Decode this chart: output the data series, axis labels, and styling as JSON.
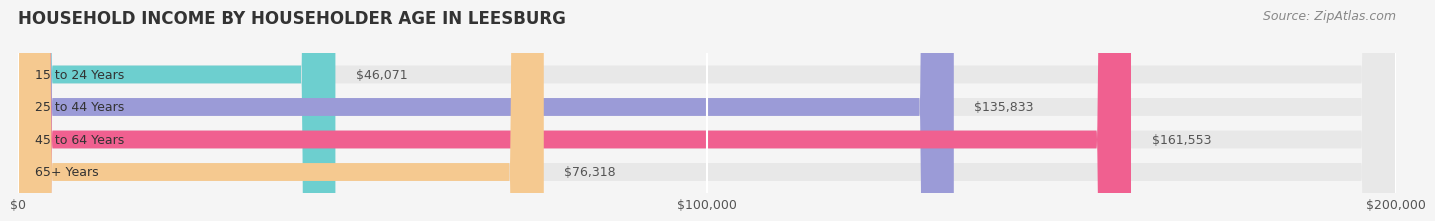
{
  "title": "HOUSEHOLD INCOME BY HOUSEHOLDER AGE IN LEESBURG",
  "source": "Source: ZipAtlas.com",
  "categories": [
    "15 to 24 Years",
    "25 to 44 Years",
    "45 to 64 Years",
    "65+ Years"
  ],
  "values": [
    46071,
    135833,
    161553,
    76318
  ],
  "bar_colors": [
    "#6dcfcf",
    "#9b9bd7",
    "#f06090",
    "#f5c990"
  ],
  "value_labels": [
    "$46,071",
    "$135,833",
    "$161,553",
    "$76,318"
  ],
  "xlim": [
    0,
    200000
  ],
  "xtick_values": [
    0,
    100000,
    200000
  ],
  "xtick_labels": [
    "$0",
    "$100,000",
    "$200,000"
  ],
  "bar_height": 0.55,
  "background_color": "#f5f5f5",
  "bar_background_color": "#e8e8e8",
  "title_fontsize": 12,
  "label_fontsize": 9,
  "value_fontsize": 9,
  "source_fontsize": 9
}
